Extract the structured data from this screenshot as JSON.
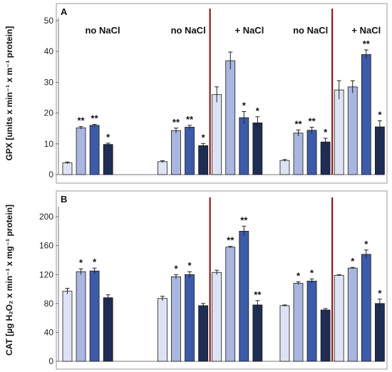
{
  "colors": {
    "bar_shades": [
      "#dde3f2",
      "#a8b6e0",
      "#3c5ba8",
      "#1f2d55"
    ],
    "frame": "#9a9a9a",
    "separator": "#8b1a1a",
    "error": "#222222"
  },
  "chart_data": [
    {
      "type": "bar",
      "panel_label": "A",
      "ylabel": "GPX [units x min⁻¹ x m⁻¹ protein]",
      "ylim": [
        0,
        50
      ],
      "yticks": [
        "0",
        "10",
        "20",
        "30",
        "40",
        "50"
      ],
      "group_labels": [
        {
          "text": "no NaCl",
          "at_x": 2.6
        },
        {
          "text": "no NaCl",
          "at_x": 8.9
        },
        {
          "text": "+ NaCl",
          "at_x": 13.4
        },
        {
          "text": "no NaCl",
          "at_x": 17.9
        },
        {
          "text": "+ NaCl",
          "at_x": 22.0
        }
      ],
      "separators_x": [
        11.0,
        20.0
      ],
      "bars": [
        {
          "x": 0,
          "shade": 0,
          "value": 3.8,
          "err": 0.3,
          "sig": ""
        },
        {
          "x": 1,
          "shade": 1,
          "value": 15.2,
          "err": 0.4,
          "sig": "**"
        },
        {
          "x": 2,
          "shade": 2,
          "value": 16.0,
          "err": 0.3,
          "sig": "**"
        },
        {
          "x": 3,
          "shade": 3,
          "value": 9.8,
          "err": 0.4,
          "sig": "*"
        },
        {
          "x": 7,
          "shade": 0,
          "value": 4.2,
          "err": 0.3,
          "sig": ""
        },
        {
          "x": 8,
          "shade": 1,
          "value": 14.3,
          "err": 0.8,
          "sig": "**"
        },
        {
          "x": 9,
          "shade": 2,
          "value": 15.4,
          "err": 0.6,
          "sig": "**"
        },
        {
          "x": 10,
          "shade": 3,
          "value": 9.4,
          "err": 0.7,
          "sig": "*"
        },
        {
          "x": 11,
          "shade": 0,
          "value": 26.0,
          "err": 2.5,
          "sig": ""
        },
        {
          "x": 12,
          "shade": 1,
          "value": 37.0,
          "err": 2.8,
          "sig": ""
        },
        {
          "x": 13,
          "shade": 2,
          "value": 18.5,
          "err": 2.0,
          "sig": "*"
        },
        {
          "x": 14,
          "shade": 3,
          "value": 16.8,
          "err": 2.0,
          "sig": "*"
        },
        {
          "x": 16,
          "shade": 0,
          "value": 4.6,
          "err": 0.3,
          "sig": ""
        },
        {
          "x": 17,
          "shade": 1,
          "value": 13.5,
          "err": 1.0,
          "sig": "**"
        },
        {
          "x": 18,
          "shade": 2,
          "value": 14.4,
          "err": 1.0,
          "sig": "**"
        },
        {
          "x": 19,
          "shade": 3,
          "value": 10.6,
          "err": 1.2,
          "sig": "*"
        },
        {
          "x": 20,
          "shade": 0,
          "value": 27.5,
          "err": 3.0,
          "sig": ""
        },
        {
          "x": 21,
          "shade": 1,
          "value": 28.5,
          "err": 2.0,
          "sig": ""
        },
        {
          "x": 22,
          "shade": 2,
          "value": 39.0,
          "err": 1.5,
          "sig": "**"
        },
        {
          "x": 23,
          "shade": 3,
          "value": 15.5,
          "err": 2.0,
          "sig": "*"
        }
      ]
    },
    {
      "type": "bar",
      "panel_label": "B",
      "ylabel": "CAT [µg H₂O₂ x min⁻¹ x mg⁻¹ protein]",
      "ylim": [
        0,
        210
      ],
      "yticks": [
        "0",
        "40",
        "80",
        "120",
        "160",
        "200"
      ],
      "tick_values": [
        0,
        40,
        80,
        120,
        160,
        200
      ],
      "group_labels": [],
      "separators_x": [
        11.0,
        20.0
      ],
      "bars": [
        {
          "x": 0,
          "shade": 0,
          "value": 97,
          "err": 4,
          "sig": ""
        },
        {
          "x": 1,
          "shade": 1,
          "value": 124,
          "err": 4,
          "sig": "*"
        },
        {
          "x": 2,
          "shade": 2,
          "value": 125,
          "err": 4,
          "sig": "*"
        },
        {
          "x": 3,
          "shade": 3,
          "value": 88,
          "err": 4,
          "sig": ""
        },
        {
          "x": 7,
          "shade": 0,
          "value": 87,
          "err": 3,
          "sig": ""
        },
        {
          "x": 8,
          "shade": 1,
          "value": 117,
          "err": 3,
          "sig": "*"
        },
        {
          "x": 9,
          "shade": 2,
          "value": 120,
          "err": 4,
          "sig": "*"
        },
        {
          "x": 10,
          "shade": 3,
          "value": 77,
          "err": 3,
          "sig": ""
        },
        {
          "x": 11,
          "shade": 0,
          "value": 123,
          "err": 3,
          "sig": ""
        },
        {
          "x": 12,
          "shade": 1,
          "value": 158,
          "err": 1,
          "sig": "**"
        },
        {
          "x": 13,
          "shade": 2,
          "value": 180,
          "err": 7,
          "sig": "**"
        },
        {
          "x": 14,
          "shade": 3,
          "value": 78,
          "err": 6,
          "sig": "**"
        },
        {
          "x": 16,
          "shade": 0,
          "value": 77,
          "err": 1,
          "sig": ""
        },
        {
          "x": 17,
          "shade": 1,
          "value": 108,
          "err": 2,
          "sig": "*"
        },
        {
          "x": 18,
          "shade": 2,
          "value": 111,
          "err": 3,
          "sig": "*"
        },
        {
          "x": 19,
          "shade": 3,
          "value": 71,
          "err": 2,
          "sig": ""
        },
        {
          "x": 20,
          "shade": 0,
          "value": 119,
          "err": 1,
          "sig": ""
        },
        {
          "x": 21,
          "shade": 1,
          "value": 129,
          "err": 1,
          "sig": "*"
        },
        {
          "x": 22,
          "shade": 2,
          "value": 148,
          "err": 6,
          "sig": "*"
        },
        {
          "x": 23,
          "shade": 3,
          "value": 80,
          "err": 6,
          "sig": "*"
        }
      ]
    }
  ]
}
